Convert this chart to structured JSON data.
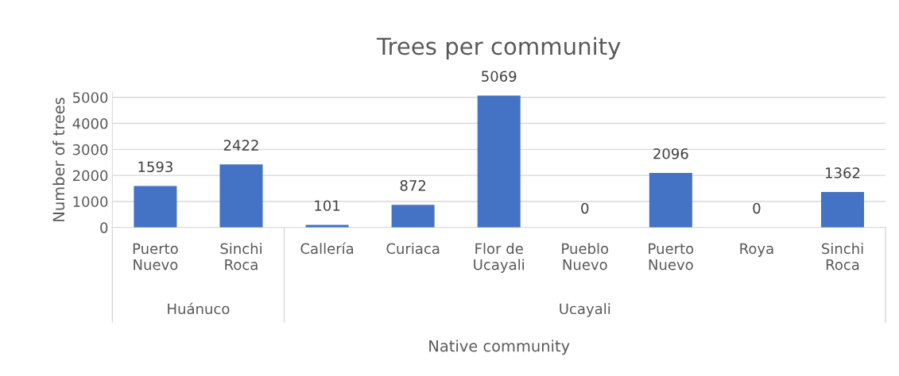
{
  "chart_data": {
    "type": "bar",
    "title": "Trees per community",
    "xlabel": "Native community",
    "ylabel": "Number of trees",
    "categories": [
      "Puerto\nNuevo",
      "Sinchi\nRoca",
      "Callería",
      "Curiaca",
      "Flor de\nUcayali",
      "Pueblo\nNuevo",
      "Puerto\nNuevo",
      "Roya",
      "Sinchi\nRoca"
    ],
    "values": [
      1593,
      2422,
      101,
      872,
      5069,
      0,
      2096,
      0,
      1362
    ],
    "color": "#4472c4",
    "ylim": [
      0,
      5200
    ],
    "yticks": [
      0,
      1000,
      2000,
      3000,
      4000,
      5000
    ],
    "grid": "y",
    "data_labels": true,
    "annotations": [
      "Huánuco",
      "Ucayali"
    ]
  }
}
